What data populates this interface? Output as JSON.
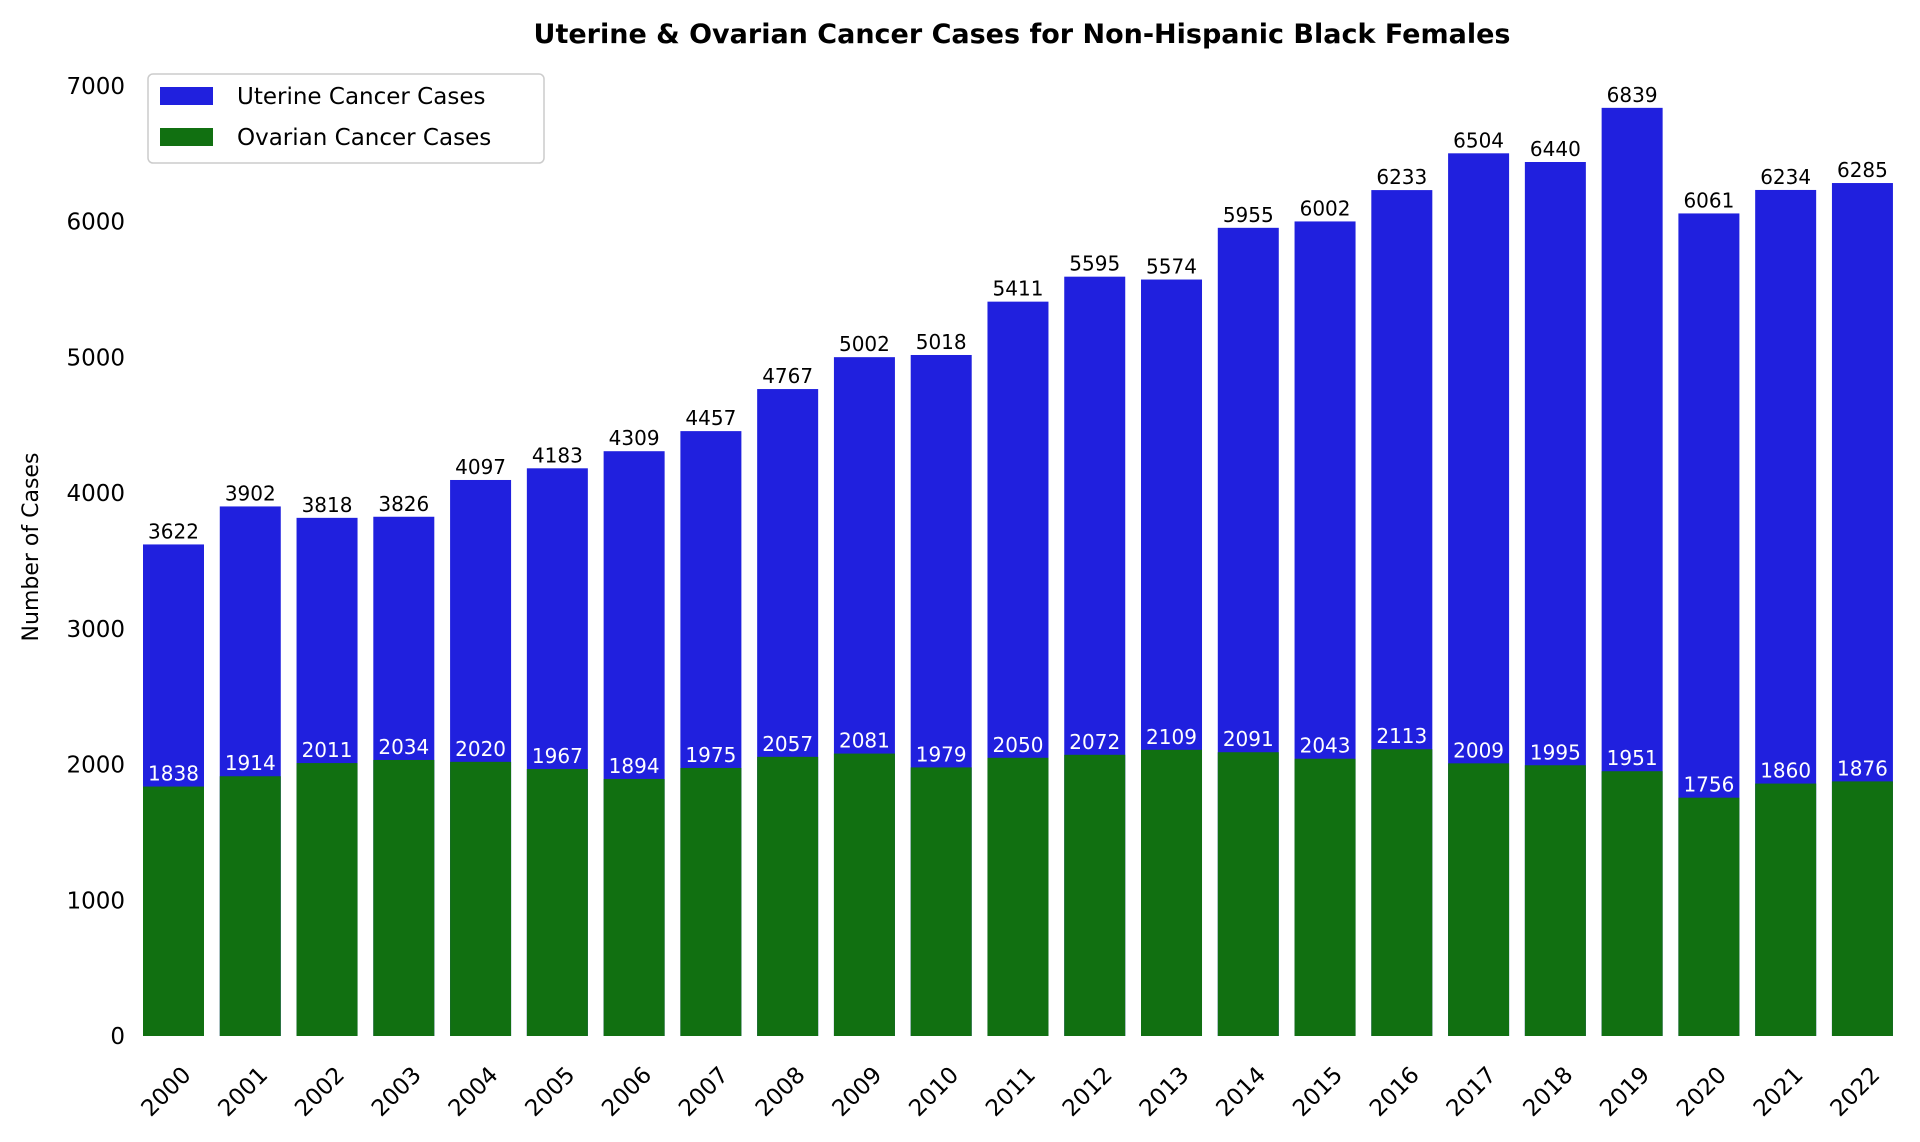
{
  "chart_data": {
    "type": "bar",
    "title": "Uterine & Ovarian Cancer Cases for Non-Hispanic Black Females",
    "xlabel": "",
    "ylabel": "Number of Cases",
    "ylim": [
      0,
      7000
    ],
    "yticks": [
      0,
      1000,
      2000,
      3000,
      4000,
      5000,
      6000,
      7000
    ],
    "grid": false,
    "legend_position": "top-left",
    "categories": [
      "2000",
      "2001",
      "2002",
      "2003",
      "2004",
      "2005",
      "2006",
      "2007",
      "2008",
      "2009",
      "2010",
      "2011",
      "2012",
      "2013",
      "2014",
      "2015",
      "2016",
      "2017",
      "2018",
      "2019",
      "2020",
      "2021",
      "2022"
    ],
    "series": [
      {
        "name": "Uterine Cancer Cases",
        "color": "#2020de",
        "label_color": "#000000",
        "values": [
          3622,
          3902,
          3818,
          3826,
          4097,
          4183,
          4309,
          4457,
          4767,
          5002,
          5018,
          5411,
          5595,
          5574,
          5955,
          6002,
          6233,
          6504,
          6440,
          6839,
          6061,
          6234,
          6285
        ]
      },
      {
        "name": "Ovarian Cancer Cases",
        "color": "#117011",
        "label_color": "#ffffff",
        "values": [
          1838,
          1914,
          2011,
          2034,
          2020,
          1967,
          1894,
          1975,
          2057,
          2081,
          1979,
          2050,
          2072,
          2109,
          2091,
          2043,
          2113,
          2009,
          1995,
          1951,
          1756,
          1860,
          1876
        ]
      }
    ],
    "x_tick_rotation_deg": 45
  }
}
